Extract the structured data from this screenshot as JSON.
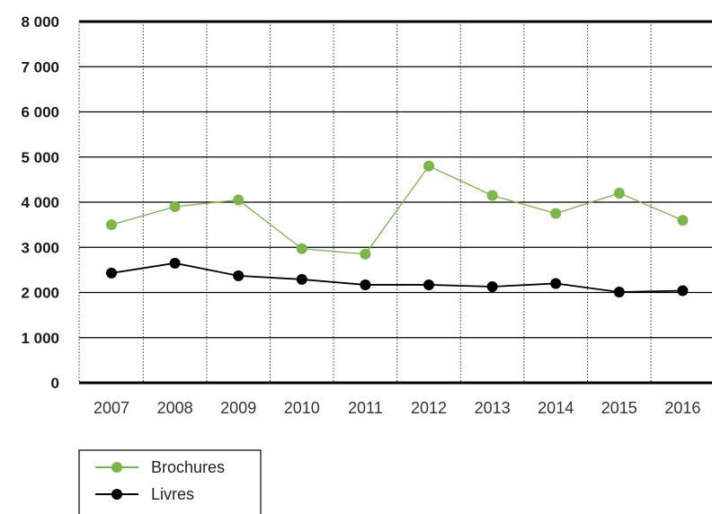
{
  "chart_data": {
    "type": "line",
    "categories": [
      "2007",
      "2008",
      "2009",
      "2010",
      "2011",
      "2012",
      "2013",
      "2014",
      "2015",
      "2016"
    ],
    "ylim": [
      0,
      8000
    ],
    "yticks": [
      0,
      1000,
      2000,
      3000,
      4000,
      5000,
      6000,
      7000,
      8000
    ],
    "ytick_labels": [
      "0",
      "1 000",
      "2 000",
      "3 000",
      "4 000",
      "5 000",
      "6 000",
      "7 000",
      "8 000"
    ],
    "grid": true,
    "legend_position": "bottom-left",
    "series": [
      {
        "name": "Brochures",
        "color": "#7ab648",
        "values": [
          3500,
          3900,
          4050,
          2970,
          2850,
          4800,
          4150,
          3750,
          4200,
          3600
        ]
      },
      {
        "name": "Livres",
        "color": "#000000",
        "values": [
          2430,
          2650,
          2370,
          2290,
          2170,
          2170,
          2130,
          2200,
          2010,
          2040
        ]
      }
    ]
  }
}
